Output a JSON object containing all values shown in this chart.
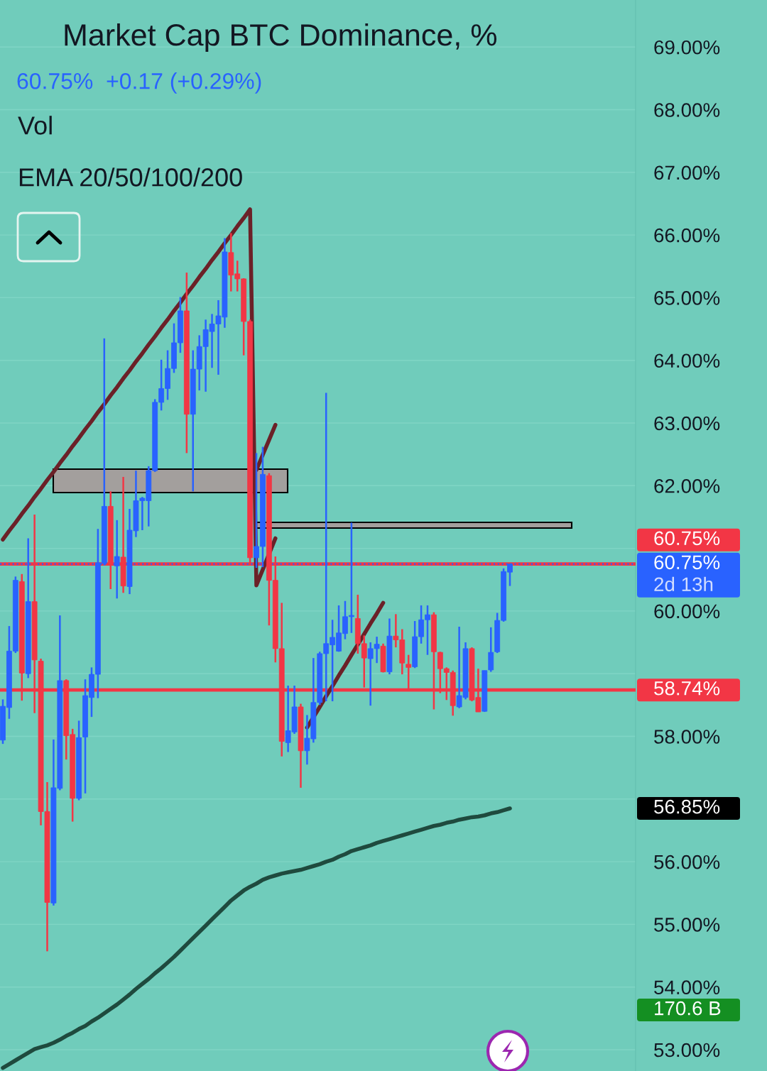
{
  "chart_data": {
    "type": "candlestick",
    "title": "Market Cap BTC Dominance, %",
    "subtitle": "60.75%  +0.17 (+0.29%)",
    "annotations": [
      "Vol",
      "EMA 20/50/100/200",
      "56.85%",
      "170.6 B"
    ],
    "categories": [
      null,
      null,
      null,
      null,
      null,
      null,
      null,
      null,
      null,
      null,
      null,
      null,
      null,
      null,
      null,
      null,
      null,
      null,
      null,
      null,
      null,
      null,
      null,
      null,
      null,
      null,
      null,
      null,
      null,
      null,
      null,
      null,
      null,
      null,
      null,
      null,
      null,
      null,
      null,
      null,
      null,
      null,
      null,
      null,
      null,
      null,
      null,
      null,
      null,
      null,
      null,
      null,
      null,
      null,
      null,
      null,
      null,
      null,
      null,
      null,
      null,
      null,
      null,
      null,
      null,
      null,
      null,
      null,
      null,
      null,
      null,
      null,
      null,
      null,
      null,
      null,
      null,
      null,
      null,
      null,
      null,
      null,
      null,
      null,
      null,
      null,
      null,
      null,
      null,
      null,
      null,
      null,
      null,
      null,
      null,
      null,
      null,
      null,
      null,
      null
    ],
    "ohlc": [
      [
        57.94,
        58.59,
        57.88,
        58.48
      ],
      [
        58.46,
        59.76,
        58.28,
        59.36
      ],
      [
        59.36,
        60.55,
        59.33,
        60.49
      ],
      [
        60.47,
        60.59,
        58.57,
        59.01
      ],
      [
        59.0,
        61.16,
        58.93,
        60.15
      ],
      [
        60.15,
        61.54,
        58.37,
        59.22
      ],
      [
        59.2,
        59.24,
        56.58,
        56.8
      ],
      [
        56.8,
        57.27,
        54.57,
        55.35
      ],
      [
        55.34,
        57.95,
        55.3,
        57.18
      ],
      [
        57.17,
        59.93,
        57.14,
        58.89
      ],
      [
        58.89,
        58.91,
        57.63,
        58.01
      ],
      [
        58.03,
        58.12,
        56.64,
        57.01
      ],
      [
        57.01,
        58.25,
        56.98,
        57.98
      ],
      [
        57.99,
        58.91,
        57.09,
        58.65
      ],
      [
        58.62,
        59.1,
        58.31,
        58.99
      ],
      [
        58.99,
        61.31,
        58.61,
        60.77
      ],
      [
        60.76,
        64.35,
        60.73,
        61.67
      ],
      [
        61.67,
        61.91,
        60.35,
        60.73
      ],
      [
        60.72,
        61.45,
        60.2,
        60.87
      ],
      [
        60.86,
        62.14,
        60.29,
        60.4
      ],
      [
        60.39,
        61.63,
        60.27,
        61.29
      ],
      [
        61.28,
        62.24,
        61.18,
        61.76
      ],
      [
        61.76,
        61.82,
        61.29,
        61.8
      ],
      [
        61.76,
        62.31,
        61.35,
        62.24
      ],
      [
        62.24,
        63.38,
        62.22,
        63.33
      ],
      [
        63.33,
        64.01,
        63.2,
        63.55
      ],
      [
        63.55,
        64.16,
        63.37,
        63.87
      ],
      [
        63.87,
        64.59,
        63.8,
        64.28
      ],
      [
        64.28,
        65.01,
        64.12,
        64.79
      ],
      [
        64.79,
        65.4,
        62.52,
        63.14
      ],
      [
        63.14,
        64.16,
        61.91,
        63.86
      ],
      [
        63.86,
        64.4,
        63.52,
        64.22
      ],
      [
        64.22,
        64.65,
        63.5,
        64.49
      ],
      [
        64.46,
        64.74,
        63.88,
        64.58
      ],
      [
        64.58,
        64.96,
        63.77,
        64.71
      ],
      [
        64.69,
        65.95,
        64.52,
        65.73
      ],
      [
        65.72,
        66.03,
        65.1,
        65.36
      ],
      [
        65.38,
        65.59,
        65.1,
        65.3
      ],
      [
        65.3,
        65.31,
        64.08,
        64.62
      ],
      [
        64.62,
        64.65,
        60.74,
        60.85
      ],
      [
        60.85,
        62.52,
        60.69,
        61.03
      ],
      [
        61.03,
        62.62,
        60.7,
        62.18
      ],
      [
        62.16,
        62.2,
        59.77,
        60.49
      ],
      [
        60.49,
        60.87,
        59.18,
        59.4
      ],
      [
        59.4,
        60.13,
        57.68,
        57.92
      ],
      [
        57.9,
        58.81,
        57.75,
        58.09
      ],
      [
        58.07,
        58.81,
        58.04,
        58.47
      ],
      [
        58.47,
        58.52,
        57.18,
        57.77
      ],
      [
        57.77,
        58.34,
        57.55,
        57.97
      ],
      [
        57.96,
        59.25,
        57.9,
        58.54
      ],
      [
        58.54,
        59.35,
        58.5,
        59.32
      ],
      [
        59.32,
        63.48,
        58.56,
        59.48
      ],
      [
        59.46,
        59.86,
        58.56,
        59.58
      ],
      [
        59.36,
        60.09,
        59.35,
        59.65
      ],
      [
        59.64,
        60.16,
        59.55,
        59.91
      ],
      [
        59.91,
        61.41,
        59.65,
        59.93
      ],
      [
        59.88,
        60.26,
        59.32,
        59.48
      ],
      [
        59.48,
        59.61,
        58.78,
        59.25
      ],
      [
        59.24,
        59.5,
        58.49,
        59.4
      ],
      [
        59.4,
        59.59,
        59.17,
        59.47
      ],
      [
        59.44,
        59.48,
        59.02,
        59.03
      ],
      [
        59.03,
        59.88,
        58.99,
        59.6
      ],
      [
        59.6,
        59.95,
        59.42,
        59.54
      ],
      [
        59.54,
        59.71,
        58.99,
        59.17
      ],
      [
        59.15,
        59.3,
        58.73,
        59.1
      ],
      [
        59.11,
        59.84,
        59.09,
        59.59
      ],
      [
        59.59,
        60.09,
        59.48,
        59.86
      ],
      [
        59.86,
        60.09,
        59.3,
        59.94
      ],
      [
        59.94,
        59.98,
        58.43,
        59.35
      ],
      [
        59.34,
        59.35,
        58.69,
        59.08
      ],
      [
        59.08,
        59.1,
        58.58,
        59.02
      ],
      [
        59.02,
        59.05,
        58.33,
        58.49
      ],
      [
        58.47,
        59.75,
        58.45,
        58.65
      ],
      [
        58.62,
        59.5,
        58.59,
        59.4
      ],
      [
        59.4,
        59.42,
        58.56,
        58.58
      ],
      [
        58.62,
        59.08,
        58.39,
        58.39
      ],
      [
        58.4,
        59.05,
        58.39,
        59.05
      ],
      [
        59.06,
        59.74,
        59.03,
        59.34
      ],
      [
        59.35,
        59.97,
        59.33,
        59.85
      ],
      [
        59.85,
        60.68,
        59.83,
        60.63
      ],
      [
        60.62,
        60.75,
        60.4,
        60.75
      ],
      null,
      null,
      null,
      null,
      null,
      null,
      null,
      null,
      null,
      null,
      null,
      null,
      null,
      null,
      null,
      null,
      null,
      null,
      null
    ],
    "colors": [
      "#2962ff",
      "#2962ff",
      "#2962ff",
      "#f23645",
      "#2962ff",
      "#f23645",
      "#f23645",
      "#f23645",
      "#2962ff",
      "#2962ff",
      "#f23645",
      "#f23645",
      "#2962ff",
      "#2962ff",
      "#2962ff",
      "#2962ff",
      "#2962ff",
      "#f23645",
      "#2962ff",
      "#f23645",
      "#2962ff",
      "#2962ff",
      "#2962ff",
      "#2962ff",
      "#2962ff",
      "#2962ff",
      "#2962ff",
      "#2962ff",
      "#2962ff",
      "#f23645",
      "#2962ff",
      "#2962ff",
      "#2962ff",
      "#2962ff",
      "#2962ff",
      "#2962ff",
      "#f23645",
      "#f23645",
      "#f23645",
      "#f23645",
      "#2962ff",
      "#2962ff",
      "#f23645",
      "#f23645",
      "#f23645",
      "#2962ff",
      "#2962ff",
      "#f23645",
      "#2962ff",
      "#2962ff",
      "#2962ff",
      "#2962ff",
      "#2962ff",
      "#2962ff",
      "#2962ff",
      "#2962ff",
      "#f23645",
      "#f23645",
      "#2962ff",
      "#2962ff",
      "#f23645",
      "#2962ff",
      "#f23645",
      "#f23645",
      "#f23645",
      "#2962ff",
      "#2962ff",
      "#2962ff",
      "#f23645",
      "#f23645",
      "#f23645",
      "#f23645",
      "#2962ff",
      "#2962ff",
      "#f23645",
      "#f23645",
      "#2962ff",
      "#2962ff",
      "#2962ff",
      "#2962ff",
      "#2962ff",
      null,
      null,
      null,
      null,
      null,
      null,
      null,
      null,
      null,
      null,
      null,
      null,
      null,
      null,
      null,
      null,
      null,
      null,
      null
    ],
    "series": [
      {
        "type": "line",
        "color": "#1f4a3e",
        "values": [
          52.71,
          52.77,
          52.83,
          52.89,
          52.95,
          53.01,
          53.04,
          53.07,
          53.11,
          53.16,
          53.22,
          53.27,
          53.33,
          53.38,
          53.45,
          53.51,
          53.58,
          53.65,
          53.72,
          53.8,
          53.88,
          53.97,
          54.05,
          54.13,
          54.22,
          54.3,
          54.39,
          54.48,
          54.58,
          54.68,
          54.78,
          54.88,
          54.98,
          55.08,
          55.18,
          55.28,
          55.38,
          55.46,
          55.54,
          55.6,
          55.65,
          55.71,
          55.75,
          55.78,
          55.81,
          55.83,
          55.85,
          55.87,
          55.9,
          55.93,
          55.96,
          56.0,
          56.03,
          56.08,
          56.12,
          56.17,
          56.2,
          56.23,
          56.26,
          56.3,
          56.33,
          56.36,
          56.39,
          56.42,
          56.45,
          56.48,
          56.51,
          56.54,
          56.57,
          56.59,
          56.62,
          56.64,
          56.67,
          56.69,
          56.71,
          56.72,
          56.74,
          56.77,
          56.79,
          56.82,
          56.85,
          null,
          null,
          null,
          null,
          null,
          null,
          null,
          null,
          null,
          null,
          null,
          null,
          null,
          null,
          null,
          null,
          null,
          null,
          null
        ]
      },
      {
        "type": "line",
        "color": "#6b2128",
        "values": [
          61.14,
          61.28,
          61.41,
          61.55,
          61.68,
          61.82,
          61.95,
          62.09,
          62.22,
          62.36,
          62.49,
          62.63,
          62.76,
          62.9,
          63.03,
          63.17,
          63.3,
          63.44,
          63.57,
          63.71,
          63.84,
          63.98,
          64.11,
          64.25,
          64.38,
          64.52,
          64.65,
          64.79,
          64.92,
          65.06,
          65.19,
          65.33,
          65.46,
          65.6,
          65.73,
          65.87,
          66.0,
          66.14,
          66.27,
          66.41,
          60.41,
          60.66,
          null,
          61.16,
          null,
          null,
          null,
          null,
          null,
          null,
          null,
          null,
          null,
          null,
          null,
          null,
          null,
          null,
          null,
          null,
          null,
          null,
          null,
          null,
          null,
          null,
          null,
          null,
          null,
          null,
          null,
          null,
          null,
          null,
          null,
          null,
          null,
          null,
          null,
          null,
          null,
          null,
          null,
          null,
          null,
          null,
          null,
          null,
          null,
          null,
          null,
          null,
          null,
          null,
          null,
          null,
          null,
          null,
          null,
          null
        ]
      },
      {
        "type": "line",
        "color": "#6b2128",
        "values": [
          null,
          null,
          null,
          null,
          null,
          null,
          null,
          null,
          null,
          null,
          null,
          null,
          null,
          null,
          null,
          null,
          null,
          null,
          null,
          null,
          null,
          null,
          null,
          null,
          null,
          null,
          null,
          null,
          null,
          null,
          null,
          null,
          null,
          null,
          null,
          null,
          null,
          null,
          null,
          null,
          62.25,
          62.49,
          62.73,
          62.97,
          null,
          null,
          null,
          null,
          null,
          null,
          null,
          null,
          null,
          null,
          null,
          null,
          null,
          null,
          null,
          null,
          null,
          null,
          null,
          null,
          null,
          null,
          null,
          null,
          null,
          null,
          null,
          null,
          null,
          null,
          null,
          null,
          null,
          null,
          null,
          null,
          null,
          null,
          null,
          null,
          null,
          null,
          null,
          null,
          null,
          null,
          null,
          null,
          null,
          null,
          null,
          null,
          null,
          null,
          null,
          null
        ]
      },
      {
        "type": "line",
        "color": "#6b2128",
        "values": [
          null,
          null,
          null,
          null,
          null,
          null,
          null,
          null,
          null,
          null,
          null,
          null,
          null,
          null,
          null,
          null,
          null,
          null,
          null,
          null,
          null,
          null,
          null,
          null,
          null,
          null,
          null,
          null,
          null,
          null,
          null,
          null,
          null,
          null,
          null,
          null,
          null,
          null,
          null,
          null,
          null,
          null,
          null,
          null,
          null,
          null,
          null,
          null,
          58.14,
          null,
          58.47,
          58.64,
          58.8,
          58.97,
          59.13,
          59.3,
          null,
          59.63,
          59.8,
          59.96,
          60.13,
          null,
          null,
          null,
          null,
          null,
          null,
          null,
          null,
          null,
          null,
          null,
          null,
          null,
          null,
          null,
          null,
          null,
          null,
          null,
          null,
          null,
          null,
          null,
          null,
          null,
          null,
          null,
          null,
          null,
          null,
          null,
          null,
          null,
          null,
          null,
          null,
          null,
          null,
          null
        ]
      }
    ],
    "ref_lines": [
      {
        "axis": "y",
        "value": 60.75,
        "label": "60.75%\n2d 13h",
        "color": "#2962ff",
        "line_style": "dotted"
      },
      {
        "axis": "y",
        "value": 60.75,
        "label": "60.75%",
        "color": "#f23645"
      },
      {
        "axis": "y",
        "value": 58.74,
        "label": "58.74%",
        "color": "#f23645"
      }
    ],
    "ylim": [
      52.66,
      69.75
    ],
    "yticks": [
      {
        "value": 53,
        "label": "53.00%"
      },
      {
        "value": 54,
        "label": "54.00%"
      },
      {
        "value": 55,
        "label": "55.00%"
      },
      {
        "value": 56,
        "label": "56.00%"
      },
      {
        "value": 57,
        "label": null
      },
      {
        "value": 58,
        "label": "58.00%"
      },
      {
        "value": 59,
        "label": null
      },
      {
        "value": 60,
        "label": "60.00%"
      },
      {
        "value": 61,
        "label": null
      },
      {
        "value": 62,
        "label": "62.00%"
      },
      {
        "value": 63,
        "label": "63.00%"
      },
      {
        "value": 64,
        "label": "64.00%"
      },
      {
        "value": 65,
        "label": "65.00%"
      },
      {
        "value": 66,
        "label": "66.00%"
      },
      {
        "value": 67,
        "label": "67.00%"
      },
      {
        "value": 68,
        "label": "68.00%"
      },
      {
        "value": 69,
        "label": "69.00%"
      }
    ],
    "grid": "y",
    "tick_labels": "y"
  }
}
